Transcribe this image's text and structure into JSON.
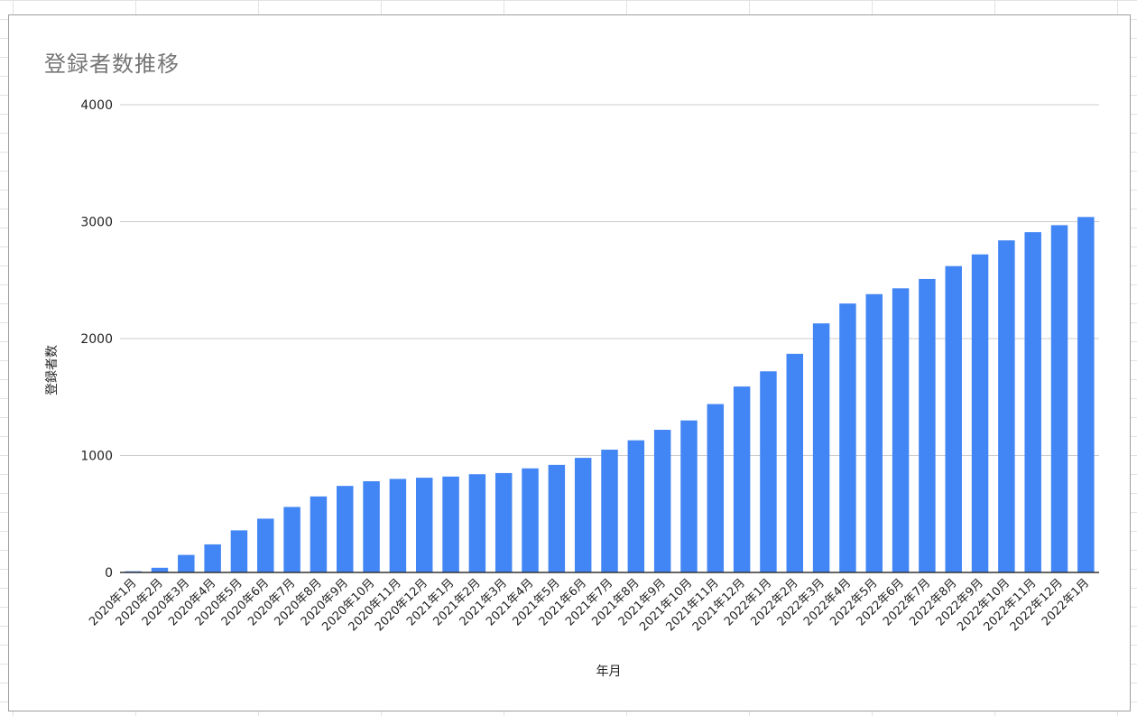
{
  "chart_data": {
    "type": "bar",
    "title": "登録者数推移",
    "xlabel": "年月",
    "ylabel": "登録者数",
    "ylim": [
      0,
      4000
    ],
    "yticks": [
      0,
      1000,
      2000,
      3000,
      4000
    ],
    "grid": true,
    "legend": "none",
    "color": "#4285F4",
    "categories": [
      "2020年1月",
      "2020年2月",
      "2020年3月",
      "2020年4月",
      "2020年5月",
      "2020年6月",
      "2020年7月",
      "2020年8月",
      "2020年9月",
      "2020年10月",
      "2020年11月",
      "2020年12月",
      "2021年1月",
      "2021年2月",
      "2021年3月",
      "2021年4月",
      "2021年5月",
      "2021年6月",
      "2021年7月",
      "2021年8月",
      "2021年9月",
      "2021年10月",
      "2021年11月",
      "2021年12月",
      "2022年1月",
      "2022年2月",
      "2022年3月",
      "2022年4月",
      "2022年5月",
      "2022年6月",
      "2022年7月",
      "2022年8月",
      "2022年9月",
      "2022年10月",
      "2022年11月",
      "2022年12月",
      "2022年1月"
    ],
    "values": [
      10,
      40,
      150,
      240,
      360,
      460,
      560,
      650,
      740,
      780,
      800,
      810,
      820,
      840,
      850,
      890,
      920,
      980,
      1050,
      1130,
      1220,
      1300,
      1440,
      1590,
      1720,
      1870,
      2130,
      2300,
      2380,
      2430,
      2510,
      2620,
      2720,
      2840,
      2910,
      2970,
      3040
    ]
  }
}
